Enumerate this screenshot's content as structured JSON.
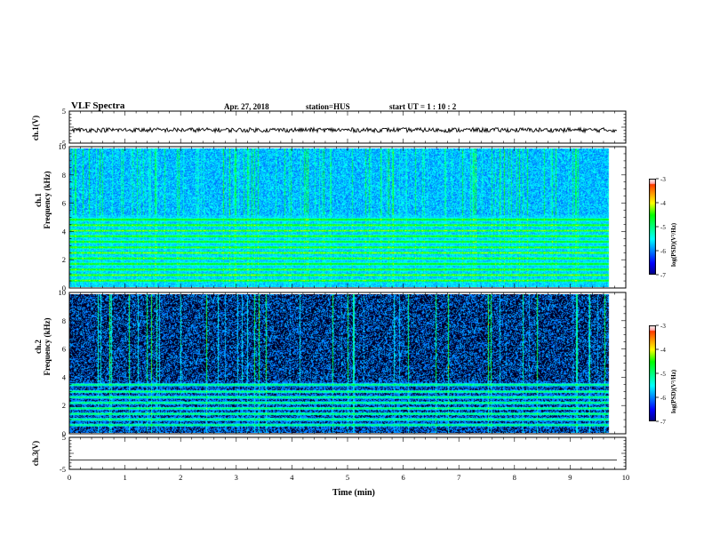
{
  "header": {
    "title": "VLF Spectra",
    "date": "Apr. 27, 2018",
    "station": "station=HUS",
    "start": "start  UT =   1 : 10 : 2"
  },
  "chart_data": [
    {
      "type": "line",
      "name": "ch1-waveform",
      "ylabel": "ch.1(V)",
      "ylim": [
        -5,
        5
      ],
      "yticks": [
        "5",
        "-5"
      ],
      "xlim": [
        0,
        10
      ]
    },
    {
      "type": "heatmap",
      "name": "ch1-spectrogram",
      "ylabel": "ch.1\nFrequency (kHz)",
      "ylabel_line1": "ch.1",
      "ylabel_line2": "Frequency (kHz)",
      "ylim": [
        0,
        10
      ],
      "yticks": [
        "0",
        "2",
        "4",
        "6",
        "8",
        "10"
      ],
      "xlim": [
        0,
        10
      ],
      "data_end_min": 9.85,
      "bands_khz": [
        0.5,
        0.9,
        1.3,
        1.7,
        2.1,
        2.5,
        2.9,
        3.3,
        3.7,
        4.1,
        4.5,
        4.9
      ],
      "colorbar": {
        "label": "log(PSD)(V²/Hz)",
        "range": [
          -7,
          -3
        ],
        "ticks": [
          "-3",
          "-4",
          "-5",
          "-6",
          "-7"
        ]
      }
    },
    {
      "type": "heatmap",
      "name": "ch2-spectrogram",
      "ylabel": "ch.2\nFrequency (kHz)",
      "ylabel_line1": "ch.2",
      "ylabel_line2": "Frequency (kHz)",
      "ylim": [
        0,
        10
      ],
      "yticks": [
        "0",
        "2",
        "4",
        "6",
        "8",
        "10"
      ],
      "xlim": [
        0,
        10
      ],
      "data_end_min": 9.85,
      "bands_khz": [
        0.6,
        1.0,
        1.4,
        1.8,
        2.2,
        2.6,
        3.0,
        3.5
      ],
      "colorbar": {
        "label": "log(PSD)(V²/Hz)",
        "range": [
          -7,
          -3
        ],
        "ticks": [
          "-3",
          "-4",
          "-5",
          "-6",
          "-7"
        ]
      }
    },
    {
      "type": "line",
      "name": "ch3-waveform",
      "ylabel": "ch.3(V)",
      "ylim": [
        -5,
        5
      ],
      "yticks": [
        "5",
        "-5"
      ],
      "xlim": [
        0,
        10
      ],
      "xlabel": "Time  (min)",
      "xticks": [
        "0",
        "1",
        "2",
        "3",
        "4",
        "5",
        "6",
        "7",
        "8",
        "9",
        "10"
      ]
    }
  ],
  "colors": {
    "background": "#ffffff",
    "axis": "#000000",
    "colormap": [
      "#000080",
      "#0000ff",
      "#0080ff",
      "#00ffff",
      "#00ff80",
      "#00ff00",
      "#ffff00",
      "#ff8000",
      "#ff0000",
      "#ffffff"
    ]
  }
}
